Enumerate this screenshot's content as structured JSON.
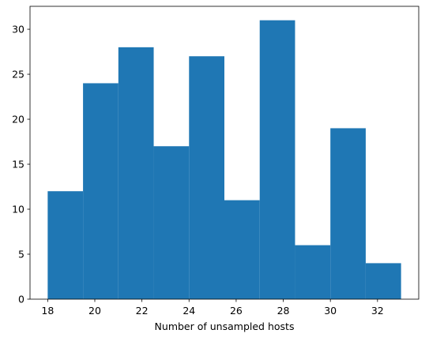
{
  "chart_data": {
    "type": "histogram",
    "title": "",
    "xlabel": "Number of unsampled hosts",
    "ylabel": "",
    "bin_edges": [
      18,
      19.5,
      21,
      22.5,
      24,
      25.5,
      27,
      28.5,
      30,
      31.5,
      33
    ],
    "counts": [
      12,
      24,
      28,
      17,
      27,
      11,
      31,
      6,
      19,
      4
    ],
    "xlim": [
      17.25,
      33.75
    ],
    "ylim": [
      0,
      32.55
    ],
    "x_ticks": [
      18,
      20,
      22,
      24,
      26,
      28,
      30,
      32
    ],
    "y_ticks": [
      0,
      5,
      10,
      15,
      20,
      25,
      30
    ],
    "bar_color": "#1f77b4",
    "grid": false,
    "legend": "none"
  }
}
